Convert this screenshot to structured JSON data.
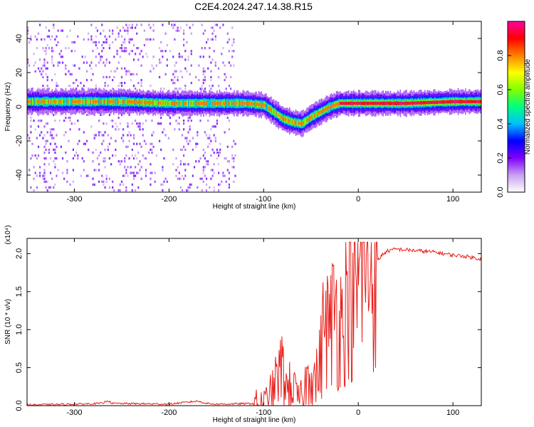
{
  "figure_title": "C2E4.2024.247.14.38.R15",
  "chart_data": [
    {
      "type": "heatmap",
      "xlabel": "Height of straight line (km)",
      "ylabel": "Frequency (Hz)",
      "xlim": [
        -350,
        130
      ],
      "ylim": [
        -50,
        50
      ],
      "xticks": [
        -300,
        -200,
        -100,
        0,
        100
      ],
      "yticks": [
        -40,
        -20,
        0,
        20,
        40
      ],
      "colorbar": {
        "label": "Normalized spectral amplitude",
        "range": [
          0,
          1
        ],
        "ticks": [
          "0.0",
          "0.2",
          "0.4",
          "0.6",
          "0.8"
        ],
        "colors": [
          "#ffffff",
          "#c8a0f0",
          "#8000ff",
          "#0000ff",
          "#00c0ff",
          "#00ff80",
          "#80ff00",
          "#ffff00",
          "#ff8000",
          "#ff0000",
          "#ff00a0"
        ]
      },
      "ridge": {
        "x": [
          -350,
          -300,
          -250,
          -200,
          -150,
          -120,
          -100,
          -90,
          -80,
          -70,
          -60,
          -50,
          -40,
          -30,
          -20,
          0,
          50,
          100,
          130
        ],
        "y": [
          3,
          3,
          3,
          2,
          2,
          2,
          1,
          -3,
          -7,
          -9,
          -10,
          -6,
          -3,
          0,
          2,
          2,
          2,
          3,
          3
        ]
      },
      "noise_regions": [
        [
          -350,
          -130
        ]
      ]
    },
    {
      "type": "line",
      "xlabel": "Height of straight line (km)",
      "ylabel": "SNR (10 * v/v)",
      "multiplier": "(x10⁴)",
      "xlim": [
        -350,
        130
      ],
      "ylim": [
        0,
        2.2
      ],
      "xticks": [
        -300,
        -200,
        -100,
        0,
        100
      ],
      "yticks": [
        "0.0",
        "0.5",
        "1.0",
        "1.5",
        "2.0"
      ],
      "series": [
        {
          "color": "#e8201c",
          "x": [
            -350,
            -300,
            -270,
            -265,
            -260,
            -200,
            -170,
            -160,
            -150,
            -100,
            -95,
            -90,
            -85,
            -80,
            -75,
            -70,
            -65,
            -60,
            -55,
            -50,
            -45,
            -40,
            -35,
            -30,
            -25,
            -20,
            -15,
            -10,
            -5,
            0,
            5,
            10,
            15,
            20,
            25,
            30,
            40,
            50,
            60,
            70,
            80,
            90,
            100,
            110,
            120,
            130
          ],
          "y": [
            0.01,
            0.02,
            0.03,
            0.07,
            0.03,
            0.02,
            0.06,
            0.03,
            0.02,
            0.03,
            0.1,
            0.2,
            0.4,
            0.5,
            0.2,
            0.3,
            0.1,
            0.1,
            0.3,
            0.55,
            0.3,
            0.6,
            1.2,
            0.9,
            1.4,
            1.0,
            1.3,
            1.6,
            1.2,
            1.7,
            1.8,
            1.95,
            1.75,
            1.9,
            1.98,
            2.03,
            2.06,
            2.05,
            2.04,
            2.03,
            2.02,
            2.0,
            1.98,
            1.97,
            1.95,
            1.93
          ]
        }
      ]
    }
  ]
}
